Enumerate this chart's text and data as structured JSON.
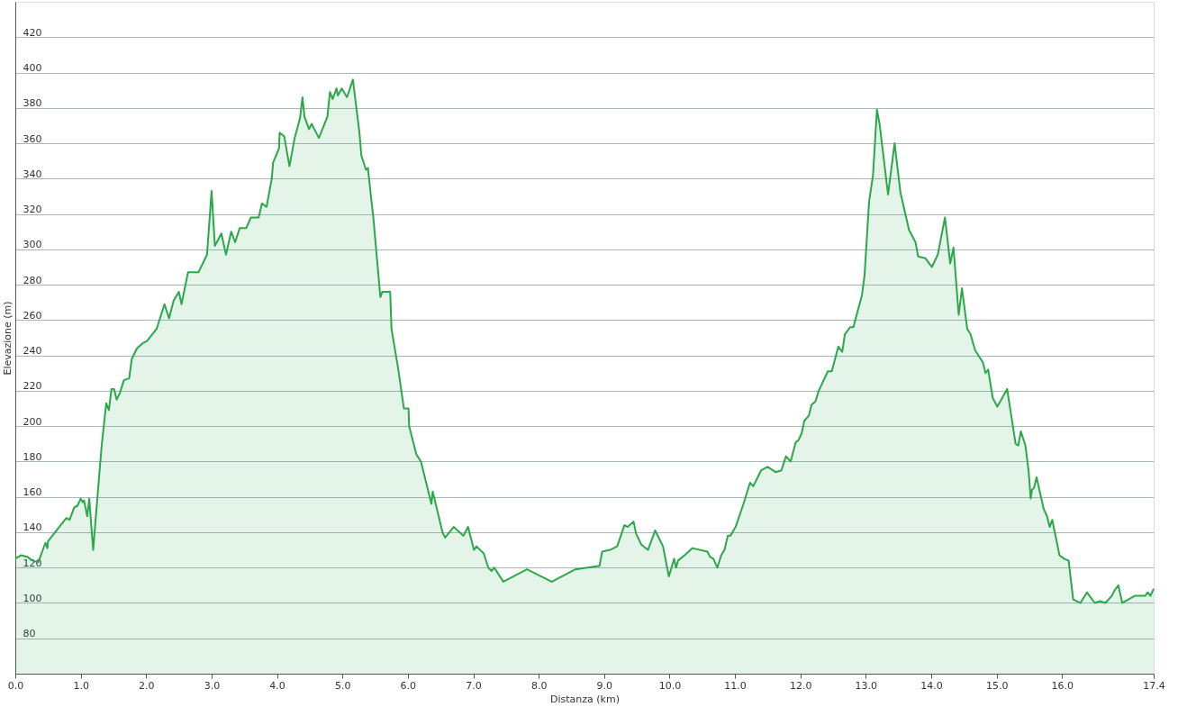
{
  "chart_data": {
    "type": "area",
    "xlabel": "Distanza  (km)",
    "ylabel": "Elevazione (m)",
    "xlim": [
      0,
      17.4
    ],
    "ylim": [
      60,
      440
    ],
    "xticks": [
      {
        "value": 0,
        "label": "0.0"
      },
      {
        "value": 1,
        "label": "1.0"
      },
      {
        "value": 2,
        "label": "2.0"
      },
      {
        "value": 3,
        "label": "3.0"
      },
      {
        "value": 4,
        "label": "4.0"
      },
      {
        "value": 5,
        "label": "5.0"
      },
      {
        "value": 6,
        "label": "6.0"
      },
      {
        "value": 7,
        "label": "7.0"
      },
      {
        "value": 8,
        "label": "8.0"
      },
      {
        "value": 9,
        "label": "9.0"
      },
      {
        "value": 10,
        "label": "10.0"
      },
      {
        "value": 11,
        "label": "11.0"
      },
      {
        "value": 12,
        "label": "12.0"
      },
      {
        "value": 13,
        "label": "13.0"
      },
      {
        "value": 14,
        "label": "14.0"
      },
      {
        "value": 15,
        "label": "15.0"
      },
      {
        "value": 16,
        "label": "16.0"
      },
      17.4
    ],
    "yticks": [
      80,
      100,
      120,
      140,
      160,
      180,
      200,
      220,
      240,
      260,
      280,
      300,
      320,
      340,
      360,
      380,
      400,
      420
    ],
    "grid": "y",
    "series": [
      {
        "color": "#2aa84a",
        "x": [
          0,
          0.09,
          0.19,
          0.26,
          0.35,
          0.46,
          0.49,
          0.5,
          0.78,
          0.83,
          0.9,
          0.95,
          1.0,
          1.03,
          1.05,
          1.1,
          1.13,
          1.19,
          1.24,
          1.32,
          1.39,
          1.43,
          1.47,
          1.51,
          1.55,
          1.6,
          1.66,
          1.74,
          1.78,
          1.86,
          1.95,
          2.01,
          2.16,
          2.28,
          2.35,
          2.42,
          2.5,
          2.54,
          2.64,
          2.8,
          2.93,
          3.0,
          3.05,
          3.15,
          3.22,
          3.3,
          3.36,
          3.43,
          3.53,
          3.6,
          3.72,
          3.77,
          3.84,
          3.92,
          3.94,
          4.03,
          4.04,
          4.11,
          4.19,
          4.27,
          4.35,
          4.39,
          4.42,
          4.49,
          4.53,
          4.57,
          4.64,
          4.77,
          4.81,
          4.85,
          4.91,
          4.93,
          4.99,
          5.07,
          5.16,
          5.26,
          5.29,
          5.36,
          5.39,
          5.43,
          5.47,
          5.58,
          5.61,
          5.73,
          5.75,
          5.85,
          5.94,
          6.01,
          6.02,
          6.13,
          6.2,
          6.26,
          6.36,
          6.38,
          6.53,
          6.57,
          6.7,
          6.85,
          6.92,
          7.01,
          7.05,
          7.16,
          7.23,
          7.28,
          7.32,
          7.46,
          7.82,
          8.2,
          8.56,
          8.93,
          8.97,
          9.09,
          9.2,
          9.31,
          9.36,
          9.45,
          9.49,
          9.57,
          9.67,
          9.78,
          9.9,
          9.99,
          10.07,
          10.1,
          10.13,
          10.23,
          10.35,
          10.58,
          10.62,
          10.67,
          10.73,
          10.79,
          10.84,
          10.89,
          10.93,
          11.01,
          11.13,
          11.23,
          11.28,
          11.4,
          11.5,
          11.62,
          11.71,
          11.78,
          11.85,
          11.93,
          11.97,
          12.02,
          12.06,
          12.13,
          12.17,
          12.23,
          12.28,
          12.42,
          12.48,
          12.58,
          12.64,
          12.68,
          12.76,
          12.81,
          12.94,
          12.98,
          13.05,
          13.11,
          13.17,
          13.21,
          13.34,
          13.44,
          13.53,
          13.66,
          13.76,
          13.8,
          13.91,
          13.97,
          14.01,
          14.1,
          14.21,
          14.29,
          14.34,
          14.42,
          14.47,
          14.55,
          14.6,
          14.67,
          14.79,
          14.83,
          14.87,
          14.94,
          15.01,
          15.16,
          15.29,
          15.33,
          15.37,
          15.44,
          15.49,
          15.52,
          15.54,
          15.57,
          15.61,
          15.72,
          15.77,
          15.81,
          15.85,
          15.96,
          16.03,
          16.1,
          16.17,
          16.28,
          16.38,
          16.42,
          16.5,
          16.58,
          16.66,
          16.76,
          16.8,
          16.86,
          16.92,
          17.11,
          17.23,
          17.27,
          17.31,
          17.35,
          17.4
        ],
        "values": [
          125,
          127,
          126,
          124,
          123,
          134,
          131,
          135,
          148,
          147,
          154,
          155,
          159,
          157,
          158,
          149,
          159,
          130,
          153,
          189,
          213,
          209,
          221,
          221,
          215,
          219,
          226,
          227,
          238,
          244,
          247,
          248,
          255,
          269,
          261,
          271,
          276,
          269,
          287,
          287,
          297,
          333,
          302,
          309,
          297,
          310,
          304,
          312,
          312,
          318,
          318,
          326,
          324,
          340,
          349,
          357,
          366,
          364,
          347,
          363,
          374,
          386,
          375,
          368,
          371,
          368,
          363,
          375,
          389,
          385,
          391,
          387,
          391,
          386,
          396,
          366,
          353,
          345,
          346,
          332,
          319,
          273,
          276,
          276,
          255,
          233,
          210,
          210,
          200,
          184,
          180,
          171,
          156,
          163,
          140,
          137,
          143,
          138,
          143,
          130,
          132,
          128,
          120,
          118,
          120,
          112,
          119,
          112,
          119,
          121,
          129,
          130,
          132,
          144,
          143,
          146,
          139,
          133,
          130,
          141,
          132,
          115,
          125,
          120,
          124,
          127,
          131,
          129,
          126,
          125,
          120,
          127,
          130,
          138,
          138,
          143,
          156,
          168,
          166,
          175,
          177,
          174,
          175,
          183,
          180,
          191,
          192,
          196,
          203,
          206,
          212,
          214,
          220,
          231,
          231,
          245,
          242,
          252,
          256,
          256,
          274,
          285,
          327,
          342,
          379,
          371,
          331,
          360,
          332,
          311,
          304,
          296,
          295,
          292,
          290,
          297,
          318,
          292,
          301,
          263,
          278,
          255,
          252,
          243,
          236,
          230,
          232,
          216,
          211,
          221,
          190,
          189,
          197,
          189,
          174,
          159,
          164,
          165,
          171,
          153,
          149,
          143,
          147,
          127,
          125,
          124,
          102,
          100,
          106,
          104,
          100,
          101,
          100,
          104,
          107,
          110,
          100,
          104,
          104,
          104,
          106,
          104,
          108
        ]
      }
    ]
  }
}
